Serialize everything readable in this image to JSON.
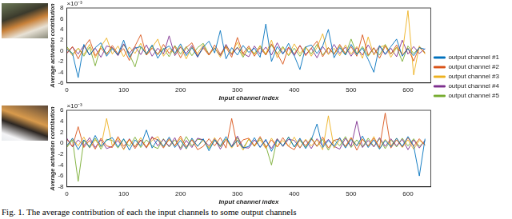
{
  "caption": "Fig. 1. The average contribution of each the input channels to some output channels",
  "chart_data": [
    {
      "type": "line",
      "ylabel": "Average activation contribution",
      "xlabel": "Input channel index",
      "y_scale_label": "×10⁻³",
      "xlim": [
        0,
        640
      ],
      "xticks": [
        0,
        100,
        200,
        300,
        400,
        500,
        600
      ],
      "ylim": [
        -6,
        8
      ],
      "yticks": [
        -6,
        -4,
        -2,
        0,
        2,
        4,
        6,
        8
      ],
      "grid": false,
      "legend": "right",
      "x": [
        0,
        10,
        20,
        30,
        40,
        50,
        60,
        70,
        80,
        90,
        100,
        110,
        120,
        130,
        140,
        150,
        160,
        170,
        180,
        190,
        200,
        210,
        220,
        230,
        240,
        250,
        260,
        270,
        280,
        290,
        300,
        310,
        320,
        330,
        340,
        350,
        360,
        370,
        380,
        390,
        400,
        410,
        420,
        430,
        440,
        450,
        460,
        470,
        480,
        490,
        500,
        510,
        520,
        530,
        540,
        550,
        560,
        570,
        580,
        590,
        600,
        610,
        620,
        630
      ],
      "series": [
        {
          "name": "output channel #1",
          "color": "#0072bd",
          "values": [
            0.3,
            -0.5,
            -5.0,
            1.2,
            -0.8,
            0.6,
            1.5,
            -1.0,
            0.4,
            -0.7,
            2.0,
            -1.2,
            0.5,
            0.8,
            -0.6,
            1.1,
            -1.4,
            0.3,
            0.9,
            -0.5,
            1.3,
            -0.9,
            0.6,
            -1.1,
            0.7,
            1.8,
            -0.4,
            3.8,
            -1.5,
            0.6,
            -0.8,
            1.0,
            -0.3,
            0.5,
            -1.2,
            5.0,
            -2.0,
            0.8,
            -0.6,
            1.4,
            -0.9,
            -3.5,
            0.7,
            1.1,
            -0.5,
            0.9,
            4.0,
            -1.3,
            0.6,
            -0.8,
            1.2,
            -0.7,
            0.5,
            -1.6,
            -4.0,
            1.0,
            -0.6,
            0.8,
            2.2,
            -1.0,
            0.4,
            -0.9,
            0.6,
            0.3
          ]
        },
        {
          "name": "output channel #2",
          "color": "#d95319",
          "values": [
            -0.4,
            0.8,
            -1.5,
            0.6,
            2.1,
            -0.9,
            0.5,
            -0.7,
            1.0,
            -0.6,
            0.4,
            -1.8,
            0.9,
            3.0,
            -0.8,
            0.5,
            -0.7,
            1.2,
            -0.5,
            0.8,
            -1.3,
            0.6,
            1.5,
            -0.9,
            0.5,
            -0.8,
            1.1,
            -0.6,
            0.7,
            -1.2,
            2.5,
            -0.5,
            0.9,
            -1.0,
            0.6,
            -0.8,
            1.3,
            -0.5,
            -2.5,
            0.7,
            -0.6,
            1.0,
            -0.9,
            0.5,
            1.8,
            -1.1,
            0.6,
            -0.7,
            1.2,
            -0.5,
            0.8,
            -1.0,
            3.0,
            -0.8,
            0.6,
            -1.4,
            0.9,
            -0.6,
            1.1,
            -0.8,
            0.5,
            -1.9,
            0.7,
            -0.4
          ]
        },
        {
          "name": "output channel #3",
          "color": "#edb120",
          "values": [
            0.6,
            -0.9,
            0.5,
            -0.7,
            1.2,
            -1.3,
            0.8,
            2.4,
            -0.6,
            0.9,
            -1.1,
            0.7,
            -0.5,
            1.4,
            -0.8,
            0.6,
            2.2,
            -1.0,
            0.5,
            -0.6,
            0.9,
            -1.5,
            0.7,
            -0.5,
            1.1,
            -0.8,
            0.6,
            -1.2,
            0.8,
            -0.5,
            1.6,
            -0.9,
            0.5,
            -0.7,
            1.0,
            -0.6,
            2.0,
            -1.3,
            0.6,
            -0.8,
            1.3,
            -0.5,
            0.8,
            -1.0,
            0.6,
            3.2,
            -0.7,
            0.5,
            -0.9,
            1.1,
            -0.6,
            0.8,
            -1.4,
            2.6,
            -0.8,
            0.7,
            1.0,
            -1.2,
            0.6,
            -0.5,
            7.5,
            -4.5,
            0.9,
            -0.6
          ]
        },
        {
          "name": "output channel #4",
          "color": "#7e2f8e",
          "values": [
            -0.5,
            0.7,
            -0.6,
            1.0,
            -0.8,
            0.5,
            -1.2,
            0.9,
            0.6,
            -0.9,
            1.3,
            -0.5,
            0.8,
            -0.7,
            1.1,
            -1.0,
            0.5,
            -0.6,
            2.8,
            -0.9,
            0.7,
            -0.5,
            1.0,
            -1.2,
            0.8,
            -0.6,
            0.5,
            -0.9,
            1.2,
            -0.7,
            0.6,
            -0.5,
            -1.1,
            0.9,
            -0.6,
            0.7,
            -0.8,
            1.5,
            -0.5,
            0.6,
            -0.9,
            1.0,
            -0.7,
            0.5,
            -1.3,
            0.8,
            -0.6,
            1.2,
            -0.5,
            0.7,
            -1.0,
            0.6,
            -0.8,
            1.1,
            -0.6,
            0.9,
            -0.7,
            0.5,
            -1.1,
            2.0,
            -0.6,
            0.8,
            -0.5,
            0.4
          ]
        },
        {
          "name": "output channel #5",
          "color": "#77ac30",
          "values": [
            0.8,
            -0.6,
            0.5,
            -1.0,
            0.7,
            -2.8,
            0.9,
            -0.5,
            0.6,
            -0.8,
            1.2,
            -0.6,
            -3.0,
            0.7,
            -0.5,
            0.9,
            -0.7,
            0.5,
            -1.1,
            1.0,
            -0.6,
            0.8,
            -0.9,
            0.6,
            1.4,
            -0.7,
            0.5,
            -0.8,
            1.0,
            -0.6,
            0.7,
            -1.2,
            0.6,
            -0.5,
            0.9,
            -0.7,
            1.1,
            -0.6,
            0.8,
            -0.9,
            0.5,
            -1.0,
            0.7,
            -0.6,
            1.2,
            -0.8,
            0.6,
            -0.5,
            0.9,
            -0.7,
            2.2,
            -0.6,
            0.8,
            -1.0,
            0.5,
            -0.8,
            1.2,
            -0.6,
            0.7,
            -2.0,
            0.9,
            -0.5,
            0.6,
            -0.3
          ]
        }
      ]
    },
    {
      "type": "line",
      "ylabel": "Average activation contribution",
      "xlabel": "Input channel index",
      "y_scale_label": "×10⁻³",
      "xlim": [
        0,
        640
      ],
      "xticks": [
        0,
        100,
        200,
        300,
        400,
        500,
        600
      ],
      "ylim": [
        -8,
        6
      ],
      "yticks": [
        -8,
        -6,
        -4,
        -2,
        0,
        2,
        4,
        6
      ],
      "grid": false,
      "x": [
        0,
        10,
        20,
        30,
        40,
        50,
        60,
        70,
        80,
        90,
        100,
        110,
        120,
        130,
        140,
        150,
        160,
        170,
        180,
        190,
        200,
        210,
        220,
        230,
        240,
        250,
        260,
        270,
        280,
        290,
        300,
        310,
        320,
        330,
        340,
        350,
        360,
        370,
        380,
        390,
        400,
        410,
        420,
        430,
        440,
        450,
        460,
        470,
        480,
        490,
        500,
        510,
        520,
        530,
        540,
        550,
        560,
        570,
        580,
        590,
        600,
        610,
        620,
        630
      ],
      "series": [
        {
          "name": "output channel #1",
          "color": "#0072bd",
          "values": [
            -0.5,
            0.9,
            -1.2,
            0.6,
            -0.8,
            1.4,
            -0.6,
            0.5,
            1.0,
            -0.7,
            0.8,
            -1.3,
            0.6,
            -0.5,
            2.4,
            -0.9,
            0.7,
            -0.6,
            1.1,
            -0.8,
            0.5,
            -1.0,
            0.9,
            -0.6,
            0.8,
            -1.4,
            0.6,
            -0.5,
            1.2,
            -0.7,
            0.5,
            -0.9,
            -0.6,
            1.0,
            -0.8,
            0.7,
            -1.5,
            0.6,
            -0.5,
            1.1,
            -0.7,
            0.9,
            -1.0,
            0.6,
            3.5,
            -0.8,
            0.5,
            -0.6,
            1.0,
            -0.9,
            0.7,
            -0.5,
            1.3,
            -0.8,
            0.6,
            -1.1,
            0.5,
            -0.7,
            0.9,
            -0.6,
            1.2,
            -0.5,
            -6.0,
            0.8
          ]
        },
        {
          "name": "output channel #2",
          "color": "#d95319",
          "values": [
            0.7,
            -0.6,
            3.0,
            -0.8,
            0.5,
            -1.1,
            0.9,
            -0.5,
            -0.8,
            1.2,
            -0.6,
            0.7,
            -1.0,
            0.5,
            -0.7,
            1.0,
            0.6,
            -0.9,
            0.8,
            -0.5,
            1.3,
            -0.7,
            0.6,
            -1.2,
            -0.6,
            0.8,
            -0.5,
            1.0,
            -0.9,
            4.5,
            -0.7,
            0.6,
            0.9,
            -0.5,
            1.2,
            -0.8,
            0.6,
            -0.7,
            1.0,
            -0.6,
            -1.2,
            0.7,
            -0.5,
            0.8,
            -0.6,
            1.1,
            -0.9,
            0.5,
            0.8,
            -0.6,
            1.0,
            -1.3,
            0.7,
            -0.5,
            0.9,
            -0.8,
            5.5,
            -0.9,
            0.6,
            -0.7,
            1.0,
            -0.6,
            0.8,
            -0.4
          ]
        },
        {
          "name": "output channel #3",
          "color": "#edb120",
          "values": [
            -0.6,
            0.8,
            -0.5,
            1.1,
            -0.9,
            0.6,
            -0.7,
            4.5,
            -0.5,
            0.9,
            -1.2,
            0.7,
            -0.6,
            1.0,
            -0.8,
            0.5,
            1.2,
            -0.7,
            0.6,
            -0.5,
            0.9,
            -1.1,
            0.7,
            -0.6,
            0.5,
            -0.8,
            1.0,
            -0.6,
            0.7,
            -0.9,
            0.6,
            -1.3,
            0.8,
            -0.5,
            0.6,
            -1.0,
            0.9,
            -0.7,
            0.5,
            -0.6,
            1.1,
            -0.8,
            0.7,
            -0.5,
            0.6,
            -1.2,
            5.0,
            -0.9,
            0.6,
            -0.7,
            1.0,
            -0.5,
            0.8,
            -0.6,
            1.2,
            -1.0,
            0.7,
            -0.5,
            0.9,
            -0.8,
            0.6,
            -1.1,
            0.5,
            -0.3
          ]
        },
        {
          "name": "output channel #4",
          "color": "#7e2f8e",
          "values": [
            0.9,
            -0.7,
            0.6,
            -0.5,
            1.0,
            -0.8,
            0.6,
            -1.0,
            -0.6,
            0.5,
            -1.1,
            0.8,
            -0.7,
            0.6,
            -0.9,
            1.2,
            -0.5,
            0.7,
            -0.6,
            1.0,
            -1.2,
            0.5,
            -0.8,
            0.9,
            0.6,
            -0.5,
            0.8,
            -1.1,
            0.7,
            -0.6,
            1.3,
            -0.8,
            -0.9,
            0.6,
            -0.7,
            0.5,
            -1.0,
            0.8,
            -0.6,
            0.7,
            0.5,
            -0.9,
            0.6,
            -1.0,
            0.8,
            -0.5,
            0.7,
            -0.6,
            -1.1,
            0.9,
            -0.6,
            4.0,
            -0.8,
            0.5,
            -0.7,
            1.0,
            -0.6,
            0.8,
            -0.5,
            0.7,
            -1.2,
            0.6,
            -0.9,
            0.5
          ]
        },
        {
          "name": "output channel #5",
          "color": "#77ac30",
          "values": [
            -0.8,
            0.6,
            -7.0,
            0.5,
            -0.6,
            0.9,
            -1.1,
            0.7,
            0.5,
            -0.9,
            0.7,
            -0.6,
            1.1,
            -0.8,
            0.6,
            -0.5,
            -1.0,
            0.8,
            -0.7,
            0.6,
            -0.9,
            1.2,
            -0.5,
            0.7,
            0.6,
            -1.0,
            0.5,
            -0.7,
            0.8,
            -0.6,
            1.0,
            -0.9,
            0.7,
            -0.6,
            0.9,
            -0.5,
            -4.0,
            0.8,
            -0.6,
            1.1,
            -0.7,
            0.5,
            -0.8,
            1.0,
            -0.6,
            0.7,
            -1.3,
            0.6,
            -0.5,
            1.2,
            -0.8,
            0.6,
            -0.7,
            0.9,
            -0.6,
            0.8,
            -1.0,
            0.6,
            -0.7,
            0.9,
            -0.5,
            0.8,
            -0.6,
            0.4
          ]
        }
      ]
    }
  ]
}
